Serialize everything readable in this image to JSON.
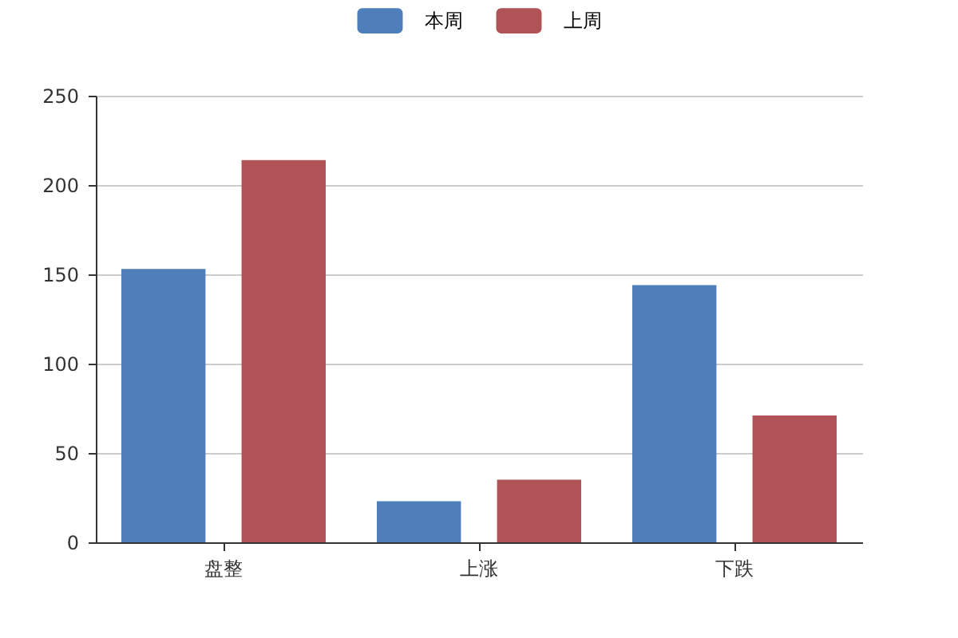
{
  "chart_data": {
    "type": "bar",
    "categories": [
      "盘整",
      "上涨",
      "下跌"
    ],
    "series": [
      {
        "name": "本周",
        "color": "#4e7fbb",
        "values": [
          153,
          23,
          144
        ]
      },
      {
        "name": "上周",
        "color": "#b05356",
        "values": [
          214,
          35,
          71
        ]
      }
    ],
    "ylim": [
      0,
      250
    ],
    "yticks": [
      0,
      50,
      100,
      150,
      200,
      250
    ],
    "grid": "y",
    "legend": "top"
  }
}
